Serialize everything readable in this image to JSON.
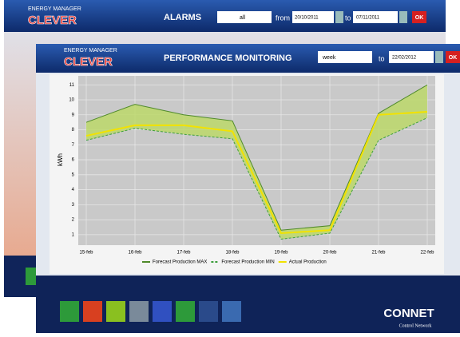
{
  "back_window": {
    "logo_top": "ENERGY MANAGER",
    "logo": "CLEVER",
    "title": "ALARMS",
    "filter": "all",
    "from_label": "from",
    "from_date": "20/10/2011",
    "to_label": "to",
    "to_date": "07/11/2011",
    "ok": "OK"
  },
  "front_window": {
    "logo_top": "ENERGY MANAGER",
    "logo": "CLEVER",
    "title": "PERFORMANCE MONITORING",
    "period": "week",
    "to_label": "to",
    "date": "22/02/2012",
    "ok": "OK"
  },
  "footer": {
    "brand": "CONNET",
    "tagline": "Control Network"
  },
  "chart_data": {
    "type": "line",
    "y_label": "kWh",
    "categories": [
      "15-feb",
      "16-feb",
      "17-feb",
      "18-feb",
      "19-feb",
      "20-feb",
      "21-feb",
      "22-feb"
    ],
    "series": [
      {
        "name": "Forecast Production MAX",
        "color": "#4f8a2a",
        "values": [
          8.5,
          9.7,
          9.0,
          8.6,
          1.3,
          1.6,
          9.1,
          11.0
        ]
      },
      {
        "name": "Forecast Production MIN",
        "color": "#3e9e3e",
        "values": [
          7.3,
          8.1,
          7.7,
          7.4,
          0.7,
          1.1,
          7.3,
          8.8
        ]
      },
      {
        "name": "Actual Production",
        "color": "#f2e200",
        "values": [
          7.6,
          8.3,
          8.3,
          7.9,
          1.1,
          1.3,
          9.0,
          9.2
        ]
      }
    ],
    "band_color": "#bcd86a",
    "ylim": [
      0.3,
      11.6
    ],
    "yticks": [
      1,
      2,
      3,
      4,
      5,
      6,
      7,
      8,
      9,
      10,
      11
    ],
    "grid": true
  }
}
